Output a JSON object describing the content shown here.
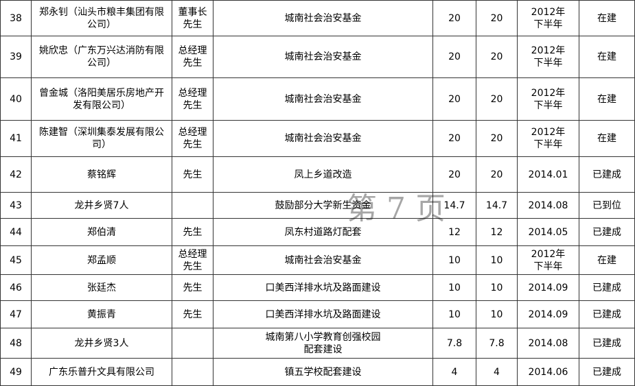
{
  "table": {
    "rows": [
      [
        "38",
        "郑永钊（汕头市粮丰集团有限公司）",
        "董事长先生",
        "城南社会治安基金",
        "20",
        "20",
        "2012年下半年",
        "在建"
      ],
      [
        "39",
        "姚欣忠（广东万兴达消防有限公司）",
        "总经理先生",
        "城南社会治安基金",
        "20",
        "20",
        "2012年下半年",
        "在建"
      ],
      [
        "40",
        "曾金城（洛阳美居乐房地产开发有限公司）",
        "总经理先生",
        "城南社会治安基金",
        "20",
        "20",
        "2012年下半年",
        "在建"
      ],
      [
        "41",
        "陈建智（深圳集泰发展有限公司）",
        "总经理先生",
        "城南社会治安基金",
        "20",
        "20",
        "2012年下半年",
        "在建"
      ],
      [
        "42",
        "蔡铭辉",
        "先生",
        "凤上乡道改造",
        "20",
        "20",
        "2014.01",
        "已建成"
      ],
      [
        "43",
        "龙井乡贤7人",
        "",
        "鼓励部分大学新生资金",
        "14.7",
        "14.7",
        "2014.08",
        "已到位"
      ],
      [
        "44",
        "郑伯清",
        "先生",
        "凤东村道路灯配套",
        "12",
        "12",
        "2014.05",
        "已建成"
      ],
      [
        "45",
        "郑孟顺",
        "总经理先生",
        "城南社会治安基金",
        "10",
        "10",
        "2012年下半年",
        "在建"
      ],
      [
        "46",
        "张廷杰",
        "先生",
        "口美西洋排水坑及路面建设",
        "10",
        "10",
        "2014.09",
        "已建成"
      ],
      [
        "47",
        "黄振青",
        "先生",
        "口美西洋排水坑及路面建设",
        "10",
        "10",
        "2014.09",
        "已建成"
      ],
      [
        "48",
        "龙井乡贤3人",
        "",
        "城南第八小学教育创强校园\n配套建设",
        "7.8",
        "7.8",
        "2014.08",
        "已建成"
      ],
      [
        "49",
        "广东乐普升文具有限公司",
        "",
        "镇五学校配套建设",
        "4",
        "4",
        "2014.06",
        "已建成"
      ]
    ]
  },
  "watermark": "第 7 页"
}
